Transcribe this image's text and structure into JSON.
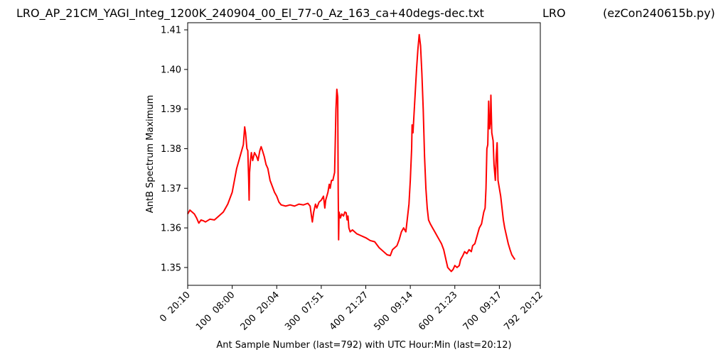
{
  "chart_data": {
    "type": "line",
    "title_left": "LRO_AP_21CM_YAGI_Integ_1200K_240904_00_El_77-0_Az_163_ca+40degs-dec.txt",
    "title_center": "LRO",
    "title_right": "(ezCon240615b.py)",
    "xlabel": "Ant Sample Number (last=792) with UTC Hour:Min (last=20:12)",
    "ylabel": "AntB Spectrum Maximum",
    "xlim": [
      0,
      792
    ],
    "ylim": [
      1.3455,
      1.4118
    ],
    "grid": false,
    "x_ticks": [
      {
        "value": 0,
        "label": "0  20:10"
      },
      {
        "value": 100,
        "label": "100  08:00"
      },
      {
        "value": 200,
        "label": "200  20:04"
      },
      {
        "value": 300,
        "label": "300  07:51"
      },
      {
        "value": 400,
        "label": "400  21:27"
      },
      {
        "value": 500,
        "label": "500  09:14"
      },
      {
        "value": 600,
        "label": "600  21:23"
      },
      {
        "value": 700,
        "label": "700  09:17"
      },
      {
        "value": 792,
        "label": "792  20:12"
      }
    ],
    "y_ticks": [
      {
        "value": 1.35,
        "label": "1.35"
      },
      {
        "value": 1.36,
        "label": "1.36"
      },
      {
        "value": 1.37,
        "label": "1.37"
      },
      {
        "value": 1.38,
        "label": "1.38"
      },
      {
        "value": 1.39,
        "label": "1.39"
      },
      {
        "value": 1.4,
        "label": "1.40"
      },
      {
        "value": 1.41,
        "label": "1.41"
      }
    ],
    "series": [
      {
        "color": "#ff0000",
        "points": [
          [
            0,
            1.3635
          ],
          [
            5,
            1.3645
          ],
          [
            10,
            1.364
          ],
          [
            15,
            1.3635
          ],
          [
            20,
            1.3625
          ],
          [
            25,
            1.3612
          ],
          [
            30,
            1.362
          ],
          [
            35,
            1.3618
          ],
          [
            40,
            1.3615
          ],
          [
            50,
            1.3622
          ],
          [
            60,
            1.362
          ],
          [
            70,
            1.363
          ],
          [
            80,
            1.364
          ],
          [
            90,
            1.366
          ],
          [
            100,
            1.369
          ],
          [
            105,
            1.372
          ],
          [
            110,
            1.375
          ],
          [
            115,
            1.377
          ],
          [
            120,
            1.379
          ],
          [
            125,
            1.381
          ],
          [
            128,
            1.3855
          ],
          [
            130,
            1.384
          ],
          [
            133,
            1.38
          ],
          [
            135,
            1.3795
          ],
          [
            137,
            1.372
          ],
          [
            138,
            1.367
          ],
          [
            139,
            1.374
          ],
          [
            141,
            1.377
          ],
          [
            143,
            1.379
          ],
          [
            146,
            1.377
          ],
          [
            150,
            1.379
          ],
          [
            155,
            1.378
          ],
          [
            158,
            1.377
          ],
          [
            162,
            1.3795
          ],
          [
            165,
            1.3805
          ],
          [
            168,
            1.3795
          ],
          [
            172,
            1.378
          ],
          [
            176,
            1.376
          ],
          [
            180,
            1.375
          ],
          [
            185,
            1.372
          ],
          [
            190,
            1.3705
          ],
          [
            195,
            1.369
          ],
          [
            200,
            1.368
          ],
          [
            205,
            1.3665
          ],
          [
            210,
            1.3658
          ],
          [
            220,
            1.3655
          ],
          [
            230,
            1.3658
          ],
          [
            240,
            1.3655
          ],
          [
            250,
            1.366
          ],
          [
            260,
            1.3658
          ],
          [
            270,
            1.3662
          ],
          [
            275,
            1.3655
          ],
          [
            278,
            1.363
          ],
          [
            280,
            1.3615
          ],
          [
            283,
            1.364
          ],
          [
            287,
            1.366
          ],
          [
            290,
            1.365
          ],
          [
            295,
            1.3665
          ],
          [
            300,
            1.367
          ],
          [
            305,
            1.368
          ],
          [
            308,
            1.365
          ],
          [
            310,
            1.367
          ],
          [
            315,
            1.369
          ],
          [
            318,
            1.371
          ],
          [
            320,
            1.37
          ],
          [
            323,
            1.372
          ],
          [
            326,
            1.372
          ],
          [
            330,
            1.374
          ],
          [
            333,
            1.39
          ],
          [
            335,
            1.395
          ],
          [
            337,
            1.393
          ],
          [
            338,
            1.37
          ],
          [
            339,
            1.357
          ],
          [
            340,
            1.364
          ],
          [
            343,
            1.3625
          ],
          [
            346,
            1.3635
          ],
          [
            350,
            1.363
          ],
          [
            353,
            1.364
          ],
          [
            356,
            1.3638
          ],
          [
            358,
            1.362
          ],
          [
            360,
            1.363
          ],
          [
            362,
            1.36
          ],
          [
            365,
            1.359
          ],
          [
            370,
            1.3595
          ],
          [
            380,
            1.3585
          ],
          [
            390,
            1.358
          ],
          [
            400,
            1.3575
          ],
          [
            410,
            1.3568
          ],
          [
            420,
            1.3565
          ],
          [
            430,
            1.355
          ],
          [
            440,
            1.354
          ],
          [
            448,
            1.3532
          ],
          [
            455,
            1.353
          ],
          [
            460,
            1.3545
          ],
          [
            465,
            1.355
          ],
          [
            470,
            1.3555
          ],
          [
            475,
            1.357
          ],
          [
            480,
            1.359
          ],
          [
            485,
            1.36
          ],
          [
            490,
            1.359
          ],
          [
            493,
            1.362
          ],
          [
            497,
            1.366
          ],
          [
            500,
            1.372
          ],
          [
            503,
            1.38
          ],
          [
            504,
            1.386
          ],
          [
            506,
            1.384
          ],
          [
            508,
            1.388
          ],
          [
            511,
            1.394
          ],
          [
            514,
            1.4
          ],
          [
            517,
            1.405
          ],
          [
            520,
            1.4088
          ],
          [
            523,
            1.406
          ],
          [
            526,
            1.399
          ],
          [
            529,
            1.39
          ],
          [
            532,
            1.378
          ],
          [
            535,
            1.37
          ],
          [
            538,
            1.365
          ],
          [
            541,
            1.362
          ],
          [
            545,
            1.361
          ],
          [
            550,
            1.36
          ],
          [
            555,
            1.359
          ],
          [
            560,
            1.358
          ],
          [
            565,
            1.357
          ],
          [
            570,
            1.356
          ],
          [
            575,
            1.3545
          ],
          [
            580,
            1.352
          ],
          [
            584,
            1.35
          ],
          [
            588,
            1.3495
          ],
          [
            592,
            1.349
          ],
          [
            596,
            1.3495
          ],
          [
            600,
            1.3505
          ],
          [
            605,
            1.35
          ],
          [
            610,
            1.3505
          ],
          [
            613,
            1.352
          ],
          [
            618,
            1.353
          ],
          [
            622,
            1.354
          ],
          [
            627,
            1.3535
          ],
          [
            632,
            1.3545
          ],
          [
            637,
            1.354
          ],
          [
            640,
            1.3555
          ],
          [
            645,
            1.356
          ],
          [
            650,
            1.358
          ],
          [
            655,
            1.36
          ],
          [
            660,
            1.361
          ],
          [
            665,
            1.364
          ],
          [
            668,
            1.365
          ],
          [
            670,
            1.37
          ],
          [
            672,
            1.38
          ],
          [
            674,
            1.381
          ],
          [
            676,
            1.392
          ],
          [
            678,
            1.385
          ],
          [
            680,
            1.387
          ],
          [
            681,
            1.3935
          ],
          [
            683,
            1.384
          ],
          [
            686,
            1.382
          ],
          [
            688,
            1.376
          ],
          [
            691,
            1.372
          ],
          [
            693,
            1.378
          ],
          [
            695,
            1.3815
          ],
          [
            697,
            1.372
          ],
          [
            700,
            1.37
          ],
          [
            703,
            1.368
          ],
          [
            706,
            1.365
          ],
          [
            709,
            1.362
          ],
          [
            712,
            1.36
          ],
          [
            716,
            1.358
          ],
          [
            720,
            1.356
          ],
          [
            724,
            1.3545
          ],
          [
            728,
            1.3532
          ],
          [
            732,
            1.3525
          ],
          [
            735,
            1.352
          ]
        ]
      }
    ]
  }
}
